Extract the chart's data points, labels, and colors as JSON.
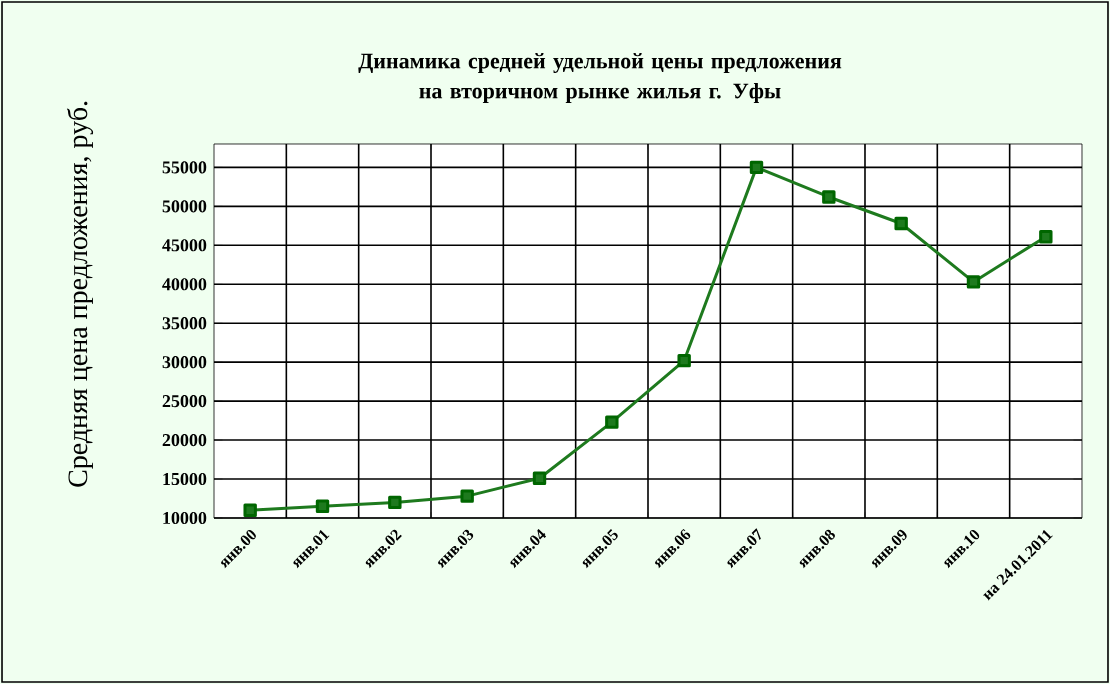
{
  "chart_data": {
    "type": "line",
    "title": "Динамика средней удельной цены предложения на вторичном рынке жилья г. Уфы",
    "ylabel": "Средняя цена предложения, руб.",
    "categories": [
      "янв.00",
      "янв.01",
      "янв.02",
      "янв.03",
      "янв.04",
      "янв.05",
      "янв.06",
      "янв.07",
      "янв.08",
      "янв.09",
      "янв.10",
      "на 24.01.2011"
    ],
    "series": [
      {
        "color": "#1e7a1e",
        "values": [
          11000,
          11500,
          12000,
          12800,
          15100,
          22300,
          30200,
          55000,
          51200,
          47800,
          40300,
          46100
        ]
      }
    ],
    "ylim": [
      10000,
      58000
    ],
    "yticks": [
      10000,
      15000,
      20000,
      25000,
      30000,
      35000,
      40000,
      45000,
      50000,
      55000
    ],
    "grid": true,
    "marker": "square",
    "line_style": "solid"
  }
}
